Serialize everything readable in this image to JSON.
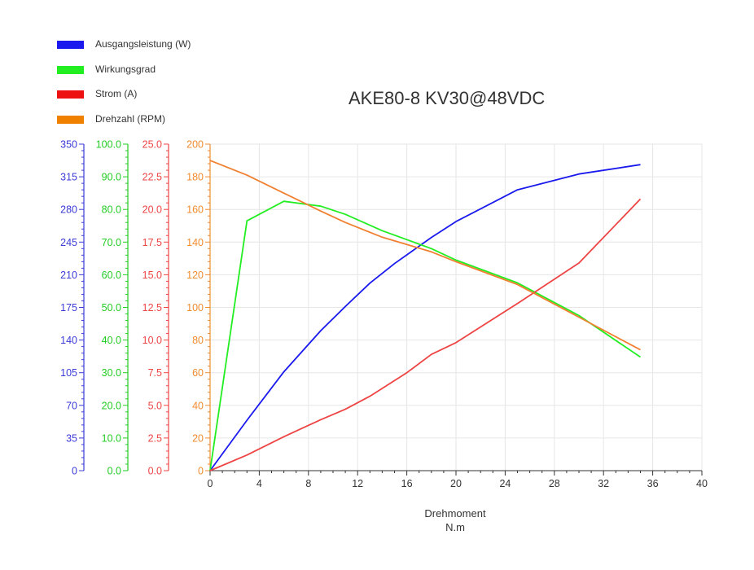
{
  "chart_data": {
    "type": "line",
    "title": "AKE80-8 KV30@48VDC",
    "xlabel": "Drehmoment",
    "xunit": "N.m",
    "xlim": [
      0,
      40
    ],
    "xticks": [
      0,
      4,
      8,
      12,
      16,
      20,
      24,
      28,
      32,
      36,
      40
    ],
    "grid": true,
    "legend_position": "top-left",
    "axes": [
      {
        "id": "power",
        "color": "#3b3bd6",
        "ylim": [
          0,
          350
        ],
        "ticks": [
          "0",
          "35",
          "70",
          "105",
          "140",
          "175",
          "210",
          "245",
          "280",
          "315",
          "350"
        ]
      },
      {
        "id": "efficiency",
        "color": "#22cc22",
        "ylim": [
          0,
          100
        ],
        "ticks": [
          "0.0",
          "10.0",
          "20.0",
          "30.0",
          "40.0",
          "50.0",
          "60.0",
          "70.0",
          "80.0",
          "90.0",
          "100.0"
        ]
      },
      {
        "id": "current",
        "color": "#ee4444",
        "ylim": [
          0,
          25
        ],
        "ticks": [
          "0.0",
          "2.5",
          "5.0",
          "7.5",
          "10.0",
          "12.5",
          "15.0",
          "17.5",
          "20.0",
          "22.5",
          "25.0"
        ]
      },
      {
        "id": "speed",
        "color": "#f08c30",
        "ylim": [
          0,
          200
        ],
        "ticks": [
          "0",
          "20",
          "40",
          "60",
          "80",
          "100",
          "120",
          "140",
          "160",
          "180",
          "200"
        ]
      }
    ],
    "series": [
      {
        "name": "Ausgangsleistung (W)",
        "axis": "power",
        "color": "#1a1aee",
        "x": [
          0,
          3,
          6,
          9,
          11,
          13,
          15,
          18,
          20,
          25,
          30,
          35
        ],
        "y": [
          0,
          54,
          106,
          150,
          176,
          201,
          222,
          250,
          267,
          301,
          318,
          328
        ]
      },
      {
        "name": "Wirkungsgrad",
        "axis": "efficiency",
        "color": "#22ee22",
        "x": [
          0,
          3,
          6,
          9,
          11,
          14,
          18,
          20,
          25,
          30,
          35
        ],
        "y": [
          0,
          76.5,
          82.5,
          81.0,
          78.5,
          73.5,
          68.0,
          64.5,
          57.5,
          47.5,
          34.8
        ]
      },
      {
        "name": "Strom (A)",
        "axis": "current",
        "color": "#ee4444",
        "x": [
          0,
          3,
          6,
          9,
          11,
          13,
          16,
          18,
          20,
          25,
          30,
          35
        ],
        "y": [
          0,
          1.2,
          2.6,
          3.9,
          4.7,
          5.7,
          7.5,
          8.9,
          9.8,
          12.8,
          15.9,
          20.8
        ]
      },
      {
        "name": "Drehzahl (RPM)",
        "axis": "speed",
        "color": "#f08030",
        "x": [
          0,
          3,
          6,
          9,
          11,
          14,
          18,
          20,
          25,
          30,
          35
        ],
        "y": [
          190,
          181,
          170,
          159,
          152,
          143,
          134,
          128,
          114,
          94,
          74
        ]
      }
    ]
  }
}
